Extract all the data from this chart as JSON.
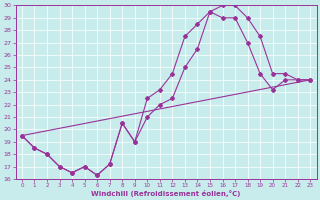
{
  "xlabel": "Windchill (Refroidissement éolien,°C)",
  "bg_color": "#c8ecec",
  "line_color": "#993399",
  "grid_color": "#b0d8d8",
  "xmin": -0.5,
  "xmax": 23.5,
  "ymin": 16,
  "ymax": 30,
  "yticks": [
    16,
    17,
    18,
    19,
    20,
    21,
    22,
    23,
    24,
    25,
    26,
    27,
    28,
    29,
    30
  ],
  "xticks": [
    0,
    1,
    2,
    3,
    4,
    5,
    6,
    7,
    8,
    9,
    10,
    11,
    12,
    13,
    14,
    15,
    16,
    17,
    18,
    19,
    20,
    21,
    22,
    23
  ],
  "line1_x": [
    0,
    1,
    2,
    3,
    4,
    5,
    6,
    7,
    8,
    9,
    10,
    11,
    12,
    13,
    14,
    15,
    16,
    17,
    18,
    19,
    20,
    21,
    22,
    23
  ],
  "line1_y": [
    19.5,
    18.5,
    18.0,
    17.0,
    16.5,
    17.0,
    16.3,
    17.2,
    20.5,
    19.0,
    22.5,
    23.2,
    24.5,
    27.5,
    28.5,
    29.5,
    30.0,
    30.0,
    29.0,
    27.5,
    24.5,
    24.5,
    24.0,
    24.0
  ],
  "line2_x": [
    0,
    1,
    2,
    3,
    4,
    5,
    6,
    7,
    8,
    9,
    10,
    11,
    12,
    13,
    14,
    15,
    16,
    17,
    18,
    19,
    20,
    21,
    22,
    23
  ],
  "line2_y": [
    19.5,
    18.5,
    18.0,
    17.0,
    16.5,
    17.0,
    16.3,
    17.2,
    20.5,
    19.0,
    21.0,
    22.0,
    22.5,
    25.0,
    26.5,
    29.5,
    29.0,
    29.0,
    27.0,
    24.5,
    23.2,
    24.0,
    24.0,
    24.0
  ],
  "line3_x": [
    0,
    23
  ],
  "line3_y": [
    19.5,
    24.0
  ],
  "marker": "D",
  "markersize": 2.0,
  "linewidth": 0.8
}
